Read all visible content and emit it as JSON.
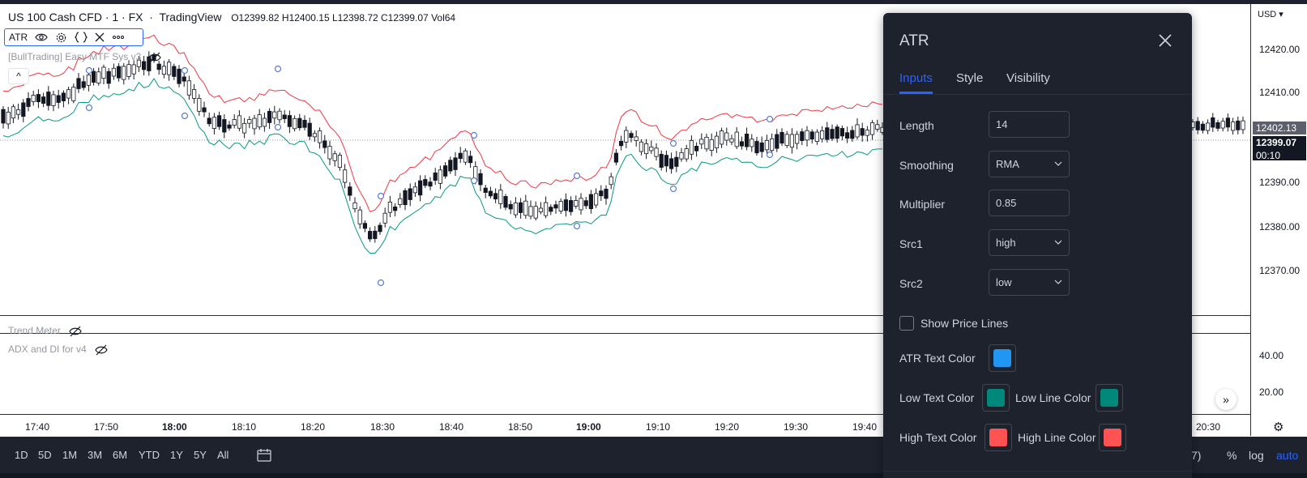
{
  "legend": {
    "symbol": "US 100 Cash CFD · 1 · FX",
    "source": "TradingView",
    "ohlc": "O12399.82  H12400.15  L12398.72  C12399.07  Vol64",
    "indicator": "ATR",
    "overlay_label": "[BullTrading] Easy MTF Sys v3",
    "collapse_glyph": "^"
  },
  "panes": {
    "trend_meter": "Trend Meter",
    "adx": "ADX and DI for v4"
  },
  "price_axis": {
    "currency": "USD",
    "ticks": [
      {
        "label": "12420.00",
        "value": 12420
      },
      {
        "label": "12410.00",
        "value": 12410
      },
      {
        "label": "12390.00",
        "value": 12390
      },
      {
        "label": "12380.00",
        "value": 12380
      },
      {
        "label": "12370.00",
        "value": 12370
      }
    ],
    "last_high_tag": "12402.13",
    "last_price_tag": "12399.07",
    "countdown": "00:10",
    "adx_ticks": [
      "40.00",
      "20.00"
    ]
  },
  "time_axis": {
    "ticks": [
      {
        "label": "17:40",
        "bold": false
      },
      {
        "label": "17:50",
        "bold": false
      },
      {
        "label": "18:00",
        "bold": true
      },
      {
        "label": "18:10",
        "bold": false
      },
      {
        "label": "18:20",
        "bold": false
      },
      {
        "label": "18:30",
        "bold": false
      },
      {
        "label": "18:40",
        "bold": false
      },
      {
        "label": "18:50",
        "bold": false
      },
      {
        "label": "19:00",
        "bold": true
      },
      {
        "label": "19:10",
        "bold": false
      },
      {
        "label": "19:20",
        "bold": false
      },
      {
        "label": "19:30",
        "bold": false
      },
      {
        "label": "19:40",
        "bold": false
      },
      {
        "label": "20:30",
        "bold": false
      }
    ]
  },
  "bottom_bar": {
    "ranges": [
      "1D",
      "5D",
      "1M",
      "3M",
      "6M",
      "YTD",
      "1Y",
      "5Y",
      "All"
    ],
    "tz_fragment": "7)",
    "percent": "%",
    "log": "log",
    "auto": "auto"
  },
  "dialog": {
    "title": "ATR",
    "tabs": [
      {
        "label": "Inputs",
        "active": true
      },
      {
        "label": "Style",
        "active": false
      },
      {
        "label": "Visibility",
        "active": false
      }
    ],
    "fields": {
      "length_label": "Length",
      "length_value": "14",
      "smoothing_label": "Smoothing",
      "smoothing_value": "RMA",
      "multiplier_label": "Multiplier",
      "multiplier_value": "0.85",
      "src1_label": "Src1",
      "src1_value": "high",
      "src2_label": "Src2",
      "src2_value": "low",
      "show_price_lines_label": "Show Price Lines",
      "show_price_lines_checked": false,
      "atr_text_color_label": "ATR Text Color",
      "low_text_color_label": "Low Text Color",
      "low_line_color_label": "Low Line Color",
      "high_text_color_label": "High Text Color",
      "high_line_color_label": "High Line Color"
    },
    "colors": {
      "atr_text": "#2196f3",
      "low_text": "#00897b",
      "low_line": "#00897b",
      "high_text": "#ff5252",
      "high_line": "#ff5252"
    }
  },
  "chart_colors": {
    "upper_line": "#f23645",
    "lower_line": "#089981",
    "markers": "#5b7bd5"
  }
}
